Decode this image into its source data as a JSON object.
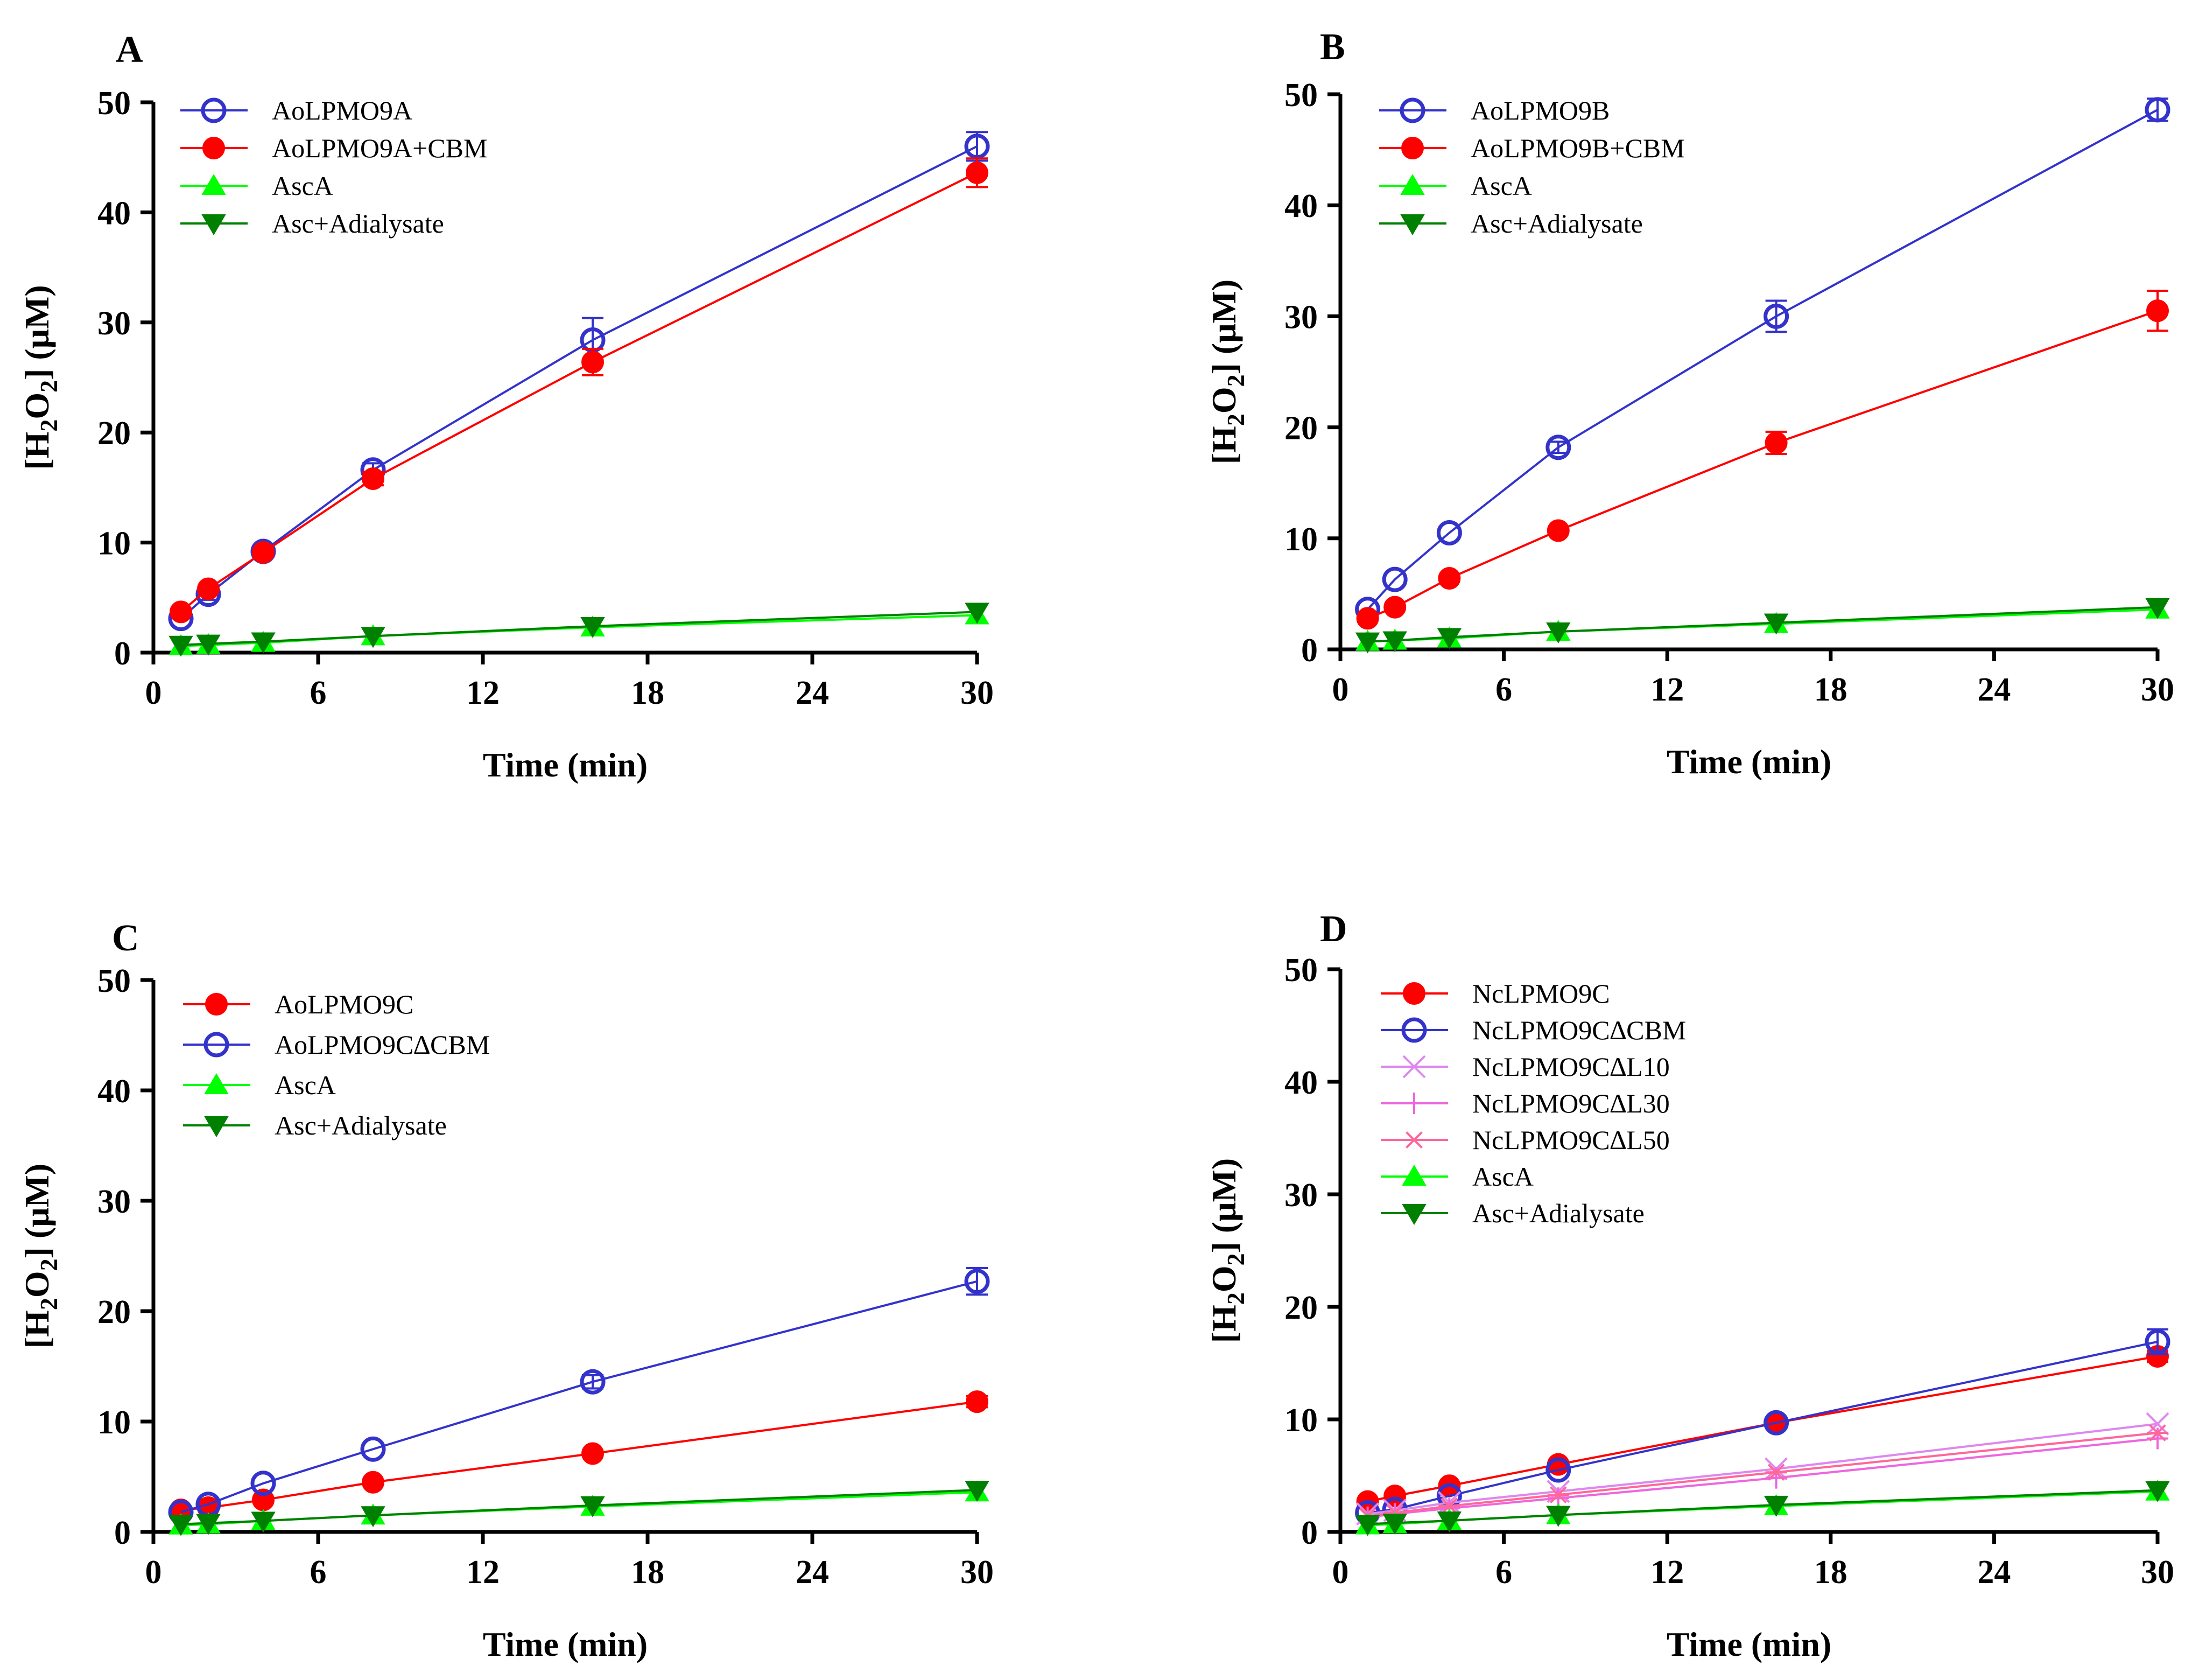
{
  "chart_data": [
    {
      "type": "line",
      "panel_label": "A",
      "xlabel": "Time (min)",
      "ylabel": "[H2O2] (μM)",
      "ylabel_parts": {
        "open": "[H",
        "sub1": "2",
        "mid": "O",
        "sub2": "2",
        "close": "] (μM)"
      },
      "xlim": [
        0,
        30
      ],
      "ylim": [
        0,
        50
      ],
      "xticks": [
        0,
        6,
        12,
        18,
        24,
        30
      ],
      "yticks": [
        0,
        10,
        20,
        30,
        40,
        50
      ],
      "legend_position": "top-left",
      "x": [
        1,
        2,
        4,
        8,
        16,
        30
      ],
      "series": [
        {
          "name": "AoLPMO9A",
          "marker": "open-circle",
          "color": "#3333cc",
          "values": [
            3.1,
            5.3,
            9.2,
            16.6,
            28.4,
            46.0
          ],
          "errors": [
            0.4,
            0.5,
            0.5,
            0.6,
            2.0,
            1.3
          ]
        },
        {
          "name": "AoLPMO9A+CBM",
          "marker": "filled-circle",
          "color": "#ff0000",
          "values": [
            3.7,
            5.8,
            9.1,
            15.8,
            26.4,
            43.6
          ],
          "errors": [
            0.4,
            0.4,
            0.4,
            0.6,
            1.2,
            1.3
          ]
        },
        {
          "name": "AscA",
          "marker": "triangle-up",
          "color": "#00ff00",
          "values": [
            0.6,
            0.7,
            0.9,
            1.5,
            2.3,
            3.4
          ],
          "errors": [
            0,
            0,
            0,
            0,
            0,
            0
          ]
        },
        {
          "name": "Asc+Adialysate",
          "marker": "triangle-down",
          "color": "#008000",
          "values": [
            0.7,
            0.8,
            1.0,
            1.5,
            2.4,
            3.7
          ],
          "errors": [
            0,
            0,
            0,
            0,
            0,
            0
          ]
        }
      ]
    },
    {
      "type": "line",
      "panel_label": "B",
      "xlabel": "Time (min)",
      "ylabel": "[H2O2] (μM)",
      "ylabel_parts": {
        "open": "[H",
        "sub1": "2",
        "mid": "O",
        "sub2": "2",
        "close": "] (μM)"
      },
      "xlim": [
        0,
        30
      ],
      "ylim": [
        0,
        50
      ],
      "xticks": [
        0,
        6,
        12,
        18,
        24,
        30
      ],
      "yticks": [
        0,
        10,
        20,
        30,
        40,
        50
      ],
      "legend_position": "top-left",
      "x": [
        1,
        2,
        4,
        8,
        16,
        30
      ],
      "series": [
        {
          "name": "AoLPMO9B",
          "marker": "open-circle",
          "color": "#3333cc",
          "values": [
            3.6,
            6.3,
            10.5,
            18.2,
            30.0,
            48.6
          ],
          "errors": [
            0.3,
            0.4,
            0.4,
            0.5,
            1.4,
            1.0
          ]
        },
        {
          "name": "AoLPMO9B+CBM",
          "marker": "filled-circle",
          "color": "#ff0000",
          "values": [
            2.8,
            3.8,
            6.4,
            10.7,
            18.6,
            30.5
          ],
          "errors": [
            0.3,
            0.3,
            0.3,
            0.4,
            1.0,
            1.8
          ]
        },
        {
          "name": "AscA",
          "marker": "triangle-up",
          "color": "#00ff00",
          "values": [
            0.7,
            0.8,
            1.0,
            1.6,
            2.3,
            3.6
          ],
          "errors": [
            0,
            0,
            0,
            0,
            0,
            0
          ]
        },
        {
          "name": "Asc+Adialysate",
          "marker": "triangle-down",
          "color": "#008000",
          "values": [
            0.7,
            0.8,
            1.1,
            1.6,
            2.4,
            3.8
          ],
          "errors": [
            0,
            0,
            0,
            0,
            0,
            0
          ]
        }
      ]
    },
    {
      "type": "line",
      "panel_label": "C",
      "xlabel": "Time (min)",
      "ylabel": "[H2O2] (μM)",
      "ylabel_parts": {
        "open": "[H",
        "sub1": "2",
        "mid": "O",
        "sub2": "2",
        "close": "] (μM)"
      },
      "xlim": [
        0,
        30
      ],
      "ylim": [
        0,
        50
      ],
      "xticks": [
        0,
        6,
        12,
        18,
        24,
        30
      ],
      "yticks": [
        0,
        10,
        20,
        30,
        40,
        50
      ],
      "legend_position": "top-left",
      "x": [
        1,
        2,
        4,
        8,
        16,
        30
      ],
      "series": [
        {
          "name": "AoLPMO9C",
          "marker": "filled-circle",
          "color": "#ff0000",
          "values": [
            2.0,
            2.2,
            2.9,
            4.5,
            7.1,
            11.8
          ],
          "errors": [
            0.2,
            0.2,
            0.3,
            0.3,
            0.4,
            0.5
          ]
        },
        {
          "name": "AoLPMO9C∆CBM",
          "marker": "open-circle",
          "color": "#3333cc",
          "values": [
            1.8,
            2.5,
            4.4,
            7.5,
            13.6,
            22.7
          ],
          "errors": [
            0.2,
            0.3,
            0.3,
            0.4,
            0.6,
            1.2
          ]
        },
        {
          "name": "AscA",
          "marker": "triangle-up",
          "color": "#00ff00",
          "values": [
            0.6,
            0.7,
            1.0,
            1.5,
            2.3,
            3.6
          ],
          "errors": [
            0,
            0,
            0,
            0,
            0,
            0
          ]
        },
        {
          "name": "Asc+Adialysate",
          "marker": "triangle-down",
          "color": "#008000",
          "values": [
            0.7,
            0.8,
            1.0,
            1.5,
            2.4,
            3.8
          ],
          "errors": [
            0,
            0,
            0,
            0,
            0,
            0
          ]
        }
      ]
    },
    {
      "type": "line",
      "panel_label": "D",
      "xlabel": "Time (min)",
      "ylabel": "[H2O2] (μM)",
      "ylabel_parts": {
        "open": "[H",
        "sub1": "2",
        "mid": "O",
        "sub2": "2",
        "close": "] (μM)"
      },
      "xlim": [
        0,
        30
      ],
      "ylim": [
        0,
        50
      ],
      "xticks": [
        0,
        6,
        12,
        18,
        24,
        30
      ],
      "yticks": [
        0,
        10,
        20,
        30,
        40,
        50
      ],
      "legend_position": "top-left",
      "x": [
        1,
        2,
        4,
        8,
        16,
        30
      ],
      "series": [
        {
          "name": "NcLPMO9C",
          "marker": "filled-circle",
          "color": "#ff0000",
          "values": [
            2.7,
            3.2,
            4.1,
            6.0,
            9.7,
            15.6
          ],
          "errors": [
            0.2,
            0.2,
            0.3,
            0.3,
            0.4,
            0.5
          ]
        },
        {
          "name": "NcLPMO9C∆CBM",
          "marker": "open-circle",
          "color": "#3333cc",
          "values": [
            1.7,
            2.0,
            3.2,
            5.5,
            9.7,
            16.9
          ],
          "errors": [
            0.2,
            0.2,
            0.3,
            0.3,
            0.4,
            1.1
          ]
        },
        {
          "name": "NcLPMO9C∆L10",
          "marker": "x-cross",
          "color": "#dd88ee",
          "values": [
            1.6,
            1.9,
            2.6,
            3.6,
            5.6,
            9.6
          ],
          "errors": [
            0,
            0,
            0,
            0,
            0,
            0
          ]
        },
        {
          "name": "NcLPMO9C∆L30",
          "marker": "plus",
          "color": "#ee66dd",
          "values": [
            1.3,
            1.6,
            2.1,
            3.0,
            4.8,
            8.3
          ],
          "errors": [
            0,
            0,
            0,
            0,
            0,
            0
          ]
        },
        {
          "name": "NcLPMO9C∆L50",
          "marker": "asterisk",
          "color": "#ff6699",
          "values": [
            1.4,
            1.7,
            2.3,
            3.3,
            5.3,
            8.8
          ],
          "errors": [
            0,
            0,
            0,
            0,
            0,
            0
          ]
        },
        {
          "name": "AscA",
          "marker": "triangle-up",
          "color": "#00ff00",
          "values": [
            0.6,
            0.7,
            1.0,
            1.5,
            2.3,
            3.6
          ],
          "errors": [
            0,
            0,
            0,
            0,
            0,
            0
          ]
        },
        {
          "name": "Asc+Adialysate",
          "marker": "triangle-down",
          "color": "#008000",
          "values": [
            0.7,
            0.8,
            1.0,
            1.5,
            2.4,
            3.7
          ],
          "errors": [
            0,
            0,
            0,
            0,
            0,
            0
          ]
        }
      ]
    }
  ]
}
